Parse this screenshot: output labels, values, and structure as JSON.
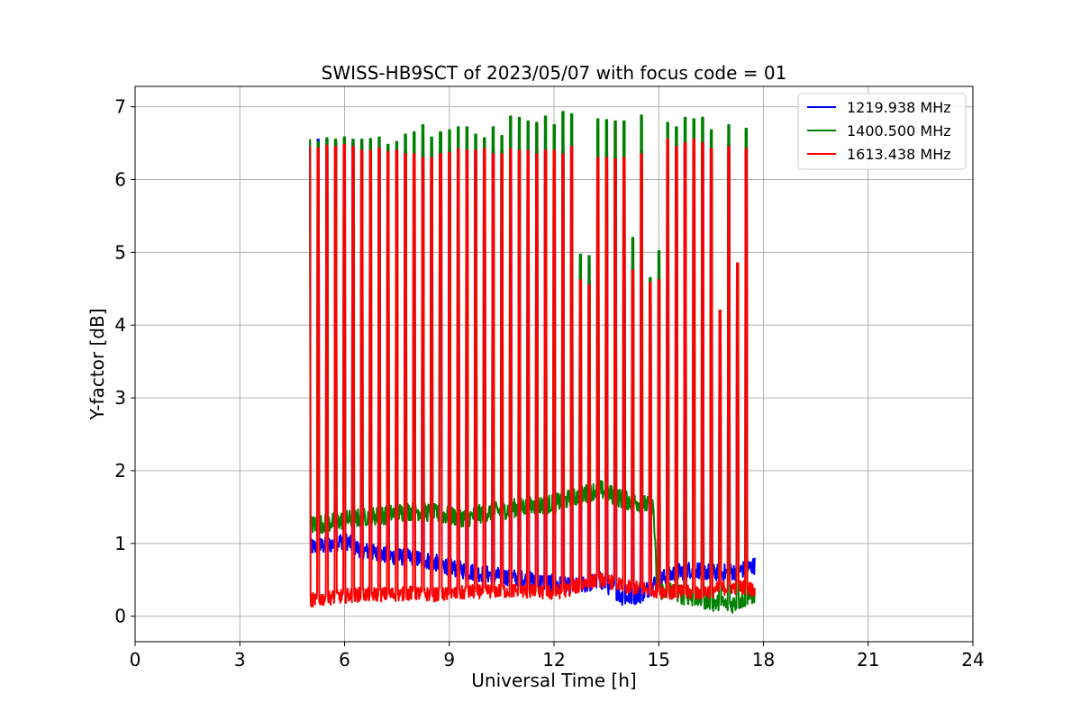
{
  "chart_data": {
    "type": "line",
    "title": "SWISS-HB9SCT of 2023/05/07 with focus code = 01",
    "xlabel": "Universal Time [h]",
    "ylabel": "Y-factor [dB]",
    "xlim": [
      0,
      24
    ],
    "ylim": [
      -0.35,
      7.28
    ],
    "x_ticks": [
      0,
      3,
      6,
      9,
      12,
      15,
      18,
      21,
      24
    ],
    "y_ticks": [
      0,
      1,
      2,
      3,
      4,
      5,
      6,
      7
    ],
    "grid": true,
    "legend_position": "top-right",
    "data_range_x": [
      5.0,
      17.75
    ],
    "series": [
      {
        "name": "1219.938 MHz",
        "color": "#0000ff",
        "baseline": {
          "x": [
            5.0,
            5.5,
            6.0,
            6.3,
            6.6,
            7.0,
            7.5,
            8.0,
            8.5,
            9.0,
            9.5,
            10.0,
            10.5,
            11.0,
            11.5,
            12.0,
            12.5,
            13.0,
            13.3,
            13.6,
            14.0,
            14.5,
            15.0,
            15.5,
            16.0,
            16.5,
            17.0,
            17.5,
            17.75
          ],
          "y": [
            0.95,
            0.97,
            1.05,
            0.95,
            0.9,
            0.85,
            0.82,
            0.8,
            0.75,
            0.68,
            0.62,
            0.58,
            0.55,
            0.52,
            0.48,
            0.45,
            0.4,
            0.45,
            0.5,
            0.4,
            0.25,
            0.3,
            0.5,
            0.6,
            0.65,
            0.6,
            0.6,
            0.65,
            0.7
          ],
          "noise": 0.12
        }
      },
      {
        "name": "1400.500 MHz",
        "color": "#008000",
        "baseline": {
          "x": [
            5.0,
            5.5,
            6.0,
            6.5,
            7.0,
            7.5,
            8.0,
            8.5,
            9.0,
            9.5,
            10.0,
            10.5,
            11.0,
            11.5,
            12.0,
            12.5,
            13.0,
            13.3,
            13.6,
            14.0,
            14.5,
            14.85,
            14.95,
            15.3,
            15.6,
            16.0,
            16.5,
            17.0,
            17.5,
            17.75
          ],
          "y": [
            1.25,
            1.28,
            1.32,
            1.36,
            1.38,
            1.42,
            1.45,
            1.42,
            1.38,
            1.35,
            1.42,
            1.45,
            1.5,
            1.52,
            1.55,
            1.62,
            1.7,
            1.75,
            1.68,
            1.6,
            1.55,
            1.5,
            0.35,
            0.35,
            0.3,
            0.25,
            0.2,
            0.15,
            0.25,
            0.3
          ],
          "noise": 0.13
        }
      },
      {
        "name": "1613.438 MHz",
        "color": "#ff0000",
        "baseline": {
          "x": [
            5.0,
            5.5,
            6.0,
            6.5,
            7.0,
            7.5,
            8.0,
            8.5,
            9.0,
            9.5,
            10.0,
            10.5,
            11.0,
            11.5,
            12.0,
            12.5,
            13.0,
            13.5,
            14.0,
            14.5,
            15.0,
            15.5,
            16.0,
            16.5,
            17.0,
            17.5,
            17.75
          ],
          "y": [
            0.22,
            0.25,
            0.28,
            0.3,
            0.3,
            0.3,
            0.32,
            0.3,
            0.3,
            0.33,
            0.35,
            0.35,
            0.35,
            0.33,
            0.32,
            0.38,
            0.48,
            0.5,
            0.4,
            0.38,
            0.35,
            0.33,
            0.32,
            0.35,
            0.4,
            0.4,
            0.35
          ],
          "noise": 0.1
        }
      }
    ],
    "spikes": {
      "x": [
        5.0,
        5.25,
        5.5,
        5.75,
        6.0,
        6.25,
        6.5,
        6.75,
        7.0,
        7.25,
        7.5,
        7.75,
        8.0,
        8.25,
        8.5,
        8.75,
        9.0,
        9.25,
        9.5,
        9.75,
        10.0,
        10.25,
        10.5,
        10.75,
        11.0,
        11.25,
        11.5,
        11.75,
        12.0,
        12.25,
        12.5,
        12.75,
        13.0,
        13.25,
        13.5,
        13.75,
        14.0,
        14.25,
        14.5,
        14.75,
        15.0,
        15.25,
        15.5,
        15.75,
        16.0,
        16.25,
        16.5,
        16.75,
        17.0,
        17.25,
        17.5
      ],
      "green_peak": [
        6.55,
        6.52,
        6.57,
        6.55,
        6.58,
        6.55,
        6.55,
        6.56,
        6.58,
        6.48,
        6.52,
        6.62,
        6.65,
        6.75,
        6.58,
        6.65,
        6.68,
        6.72,
        6.72,
        6.62,
        6.57,
        6.72,
        6.6,
        6.87,
        6.85,
        6.8,
        6.78,
        6.87,
        6.75,
        6.93,
        6.9,
        4.97,
        4.95,
        6.83,
        6.82,
        6.8,
        6.8,
        5.2,
        6.88,
        4.65,
        5.02,
        6.78,
        6.72,
        6.85,
        6.83,
        6.85,
        6.68,
        4.2,
        6.75,
        4.85,
        6.7
      ],
      "red_peak": [
        6.45,
        6.43,
        6.47,
        6.45,
        6.48,
        6.45,
        6.4,
        6.4,
        6.43,
        6.38,
        6.4,
        6.35,
        6.35,
        6.3,
        6.3,
        6.35,
        6.37,
        6.42,
        6.4,
        6.4,
        6.42,
        6.35,
        6.35,
        6.42,
        6.4,
        6.4,
        6.35,
        6.4,
        6.4,
        6.35,
        6.45,
        4.62,
        4.55,
        6.3,
        6.3,
        6.28,
        6.3,
        4.75,
        6.35,
        4.58,
        4.62,
        6.55,
        6.45,
        6.5,
        6.55,
        6.5,
        6.42,
        4.2,
        6.45,
        4.85,
        6.42
      ],
      "blue_peak": [
        6.52,
        6.55,
        6.55,
        6.52,
        6.52,
        6.5,
        6.48,
        6.48,
        6.45,
        6.45,
        6.42,
        6.4,
        6.4,
        6.38,
        6.38,
        6.4,
        6.42,
        6.42,
        6.4,
        6.4,
        6.42,
        6.4,
        6.4,
        6.45,
        6.42,
        6.42,
        6.4,
        6.42,
        6.42,
        6.4,
        6.45,
        4.65,
        4.6,
        6.35,
        6.35,
        6.32,
        6.33,
        4.78,
        6.4,
        4.6,
        4.65,
        6.55,
        6.5,
        6.52,
        6.55,
        6.52,
        6.45,
        4.2,
        6.5,
        4.85,
        6.45
      ],
      "width_h": 0.05
    }
  }
}
